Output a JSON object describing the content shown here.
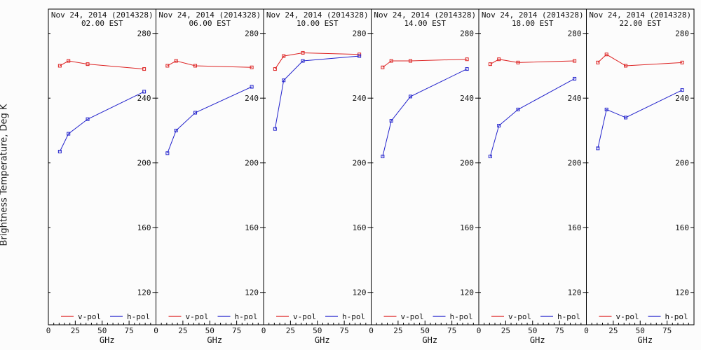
{
  "figure": {
    "ylabel": "Brightness Temperature, Deg K",
    "xlabel": "GHz"
  },
  "chart_data": [
    {
      "type": "line",
      "title": "Nov 24, 2014 (2014328)",
      "subtitle": "02.00 EST",
      "xlabel": "GHz",
      "ylabel": "Brightness Temperature, Deg K",
      "xlim": [
        0,
        100
      ],
      "ylim": [
        100,
        295
      ],
      "x_ticks": [
        0,
        25,
        50,
        75
      ],
      "y_ticks": [
        120,
        160,
        200,
        240,
        280
      ],
      "x": [
        10.65,
        18.7,
        36.5,
        89.0
      ],
      "series": [
        {
          "name": "v-pol",
          "color": "#dd2222",
          "values": [
            260,
            263,
            261,
            258
          ]
        },
        {
          "name": "h-pol",
          "color": "#2222cc",
          "values": [
            207,
            218,
            227,
            244
          ]
        }
      ],
      "legend": "bottom"
    },
    {
      "type": "line",
      "title": "Nov 24, 2014 (2014328)",
      "subtitle": "06.00 EST",
      "xlabel": "GHz",
      "xlim": [
        0,
        100
      ],
      "ylim": [
        100,
        295
      ],
      "x_ticks": [
        0,
        25,
        50,
        75
      ],
      "y_ticks": [
        120,
        160,
        200,
        240,
        280
      ],
      "x": [
        10.65,
        18.7,
        36.5,
        89.0
      ],
      "series": [
        {
          "name": "v-pol",
          "color": "#dd2222",
          "values": [
            260,
            263,
            260,
            259
          ]
        },
        {
          "name": "h-pol",
          "color": "#2222cc",
          "values": [
            206,
            220,
            231,
            247
          ]
        }
      ],
      "legend": "bottom"
    },
    {
      "type": "line",
      "title": "Nov 24, 2014 (2014328)",
      "subtitle": "10.00 EST",
      "xlabel": "GHz",
      "xlim": [
        0,
        100
      ],
      "ylim": [
        100,
        295
      ],
      "x_ticks": [
        0,
        25,
        50,
        75
      ],
      "y_ticks": [
        120,
        160,
        200,
        240,
        280
      ],
      "x": [
        10.65,
        18.7,
        36.5,
        89.0
      ],
      "series": [
        {
          "name": "v-pol",
          "color": "#dd2222",
          "values": [
            258,
            266,
            268,
            267
          ]
        },
        {
          "name": "h-pol",
          "color": "#2222cc",
          "values": [
            221,
            251,
            263,
            266
          ]
        }
      ],
      "legend": "bottom"
    },
    {
      "type": "line",
      "title": "Nov 24, 2014 (2014328)",
      "subtitle": "14.00 EST",
      "xlabel": "GHz",
      "xlim": [
        0,
        100
      ],
      "ylim": [
        100,
        295
      ],
      "x_ticks": [
        0,
        25,
        50,
        75
      ],
      "y_ticks": [
        120,
        160,
        200,
        240,
        280
      ],
      "x": [
        10.65,
        18.7,
        36.5,
        89.0
      ],
      "series": [
        {
          "name": "v-pol",
          "color": "#dd2222",
          "values": [
            259,
            263,
            263,
            264
          ]
        },
        {
          "name": "h-pol",
          "color": "#2222cc",
          "values": [
            204,
            226,
            241,
            258
          ]
        }
      ],
      "legend": "bottom"
    },
    {
      "type": "line",
      "title": "Nov 24, 2014 (2014328)",
      "subtitle": "18.00 EST",
      "xlabel": "GHz",
      "xlim": [
        0,
        100
      ],
      "ylim": [
        100,
        295
      ],
      "x_ticks": [
        0,
        25,
        50,
        75
      ],
      "y_ticks": [
        120,
        160,
        200,
        240,
        280
      ],
      "x": [
        10.65,
        18.7,
        36.5,
        89.0
      ],
      "series": [
        {
          "name": "v-pol",
          "color": "#dd2222",
          "values": [
            261,
            264,
            262,
            263
          ]
        },
        {
          "name": "h-pol",
          "color": "#2222cc",
          "values": [
            204,
            223,
            233,
            252
          ]
        }
      ],
      "legend": "bottom"
    },
    {
      "type": "line",
      "title": "Nov 24, 2014 (2014328)",
      "subtitle": "22.00 EST",
      "xlabel": "GHz",
      "xlim": [
        0,
        100
      ],
      "ylim": [
        100,
        295
      ],
      "x_ticks": [
        0,
        25,
        50,
        75
      ],
      "y_ticks": [
        120,
        160,
        200,
        240,
        280
      ],
      "x": [
        10.65,
        18.7,
        36.5,
        89.0
      ],
      "series": [
        {
          "name": "v-pol",
          "color": "#dd2222",
          "values": [
            262,
            267,
            260,
            262
          ]
        },
        {
          "name": "h-pol",
          "color": "#2222cc",
          "values": [
            209,
            233,
            228,
            245
          ]
        }
      ],
      "legend": "bottom"
    }
  ]
}
